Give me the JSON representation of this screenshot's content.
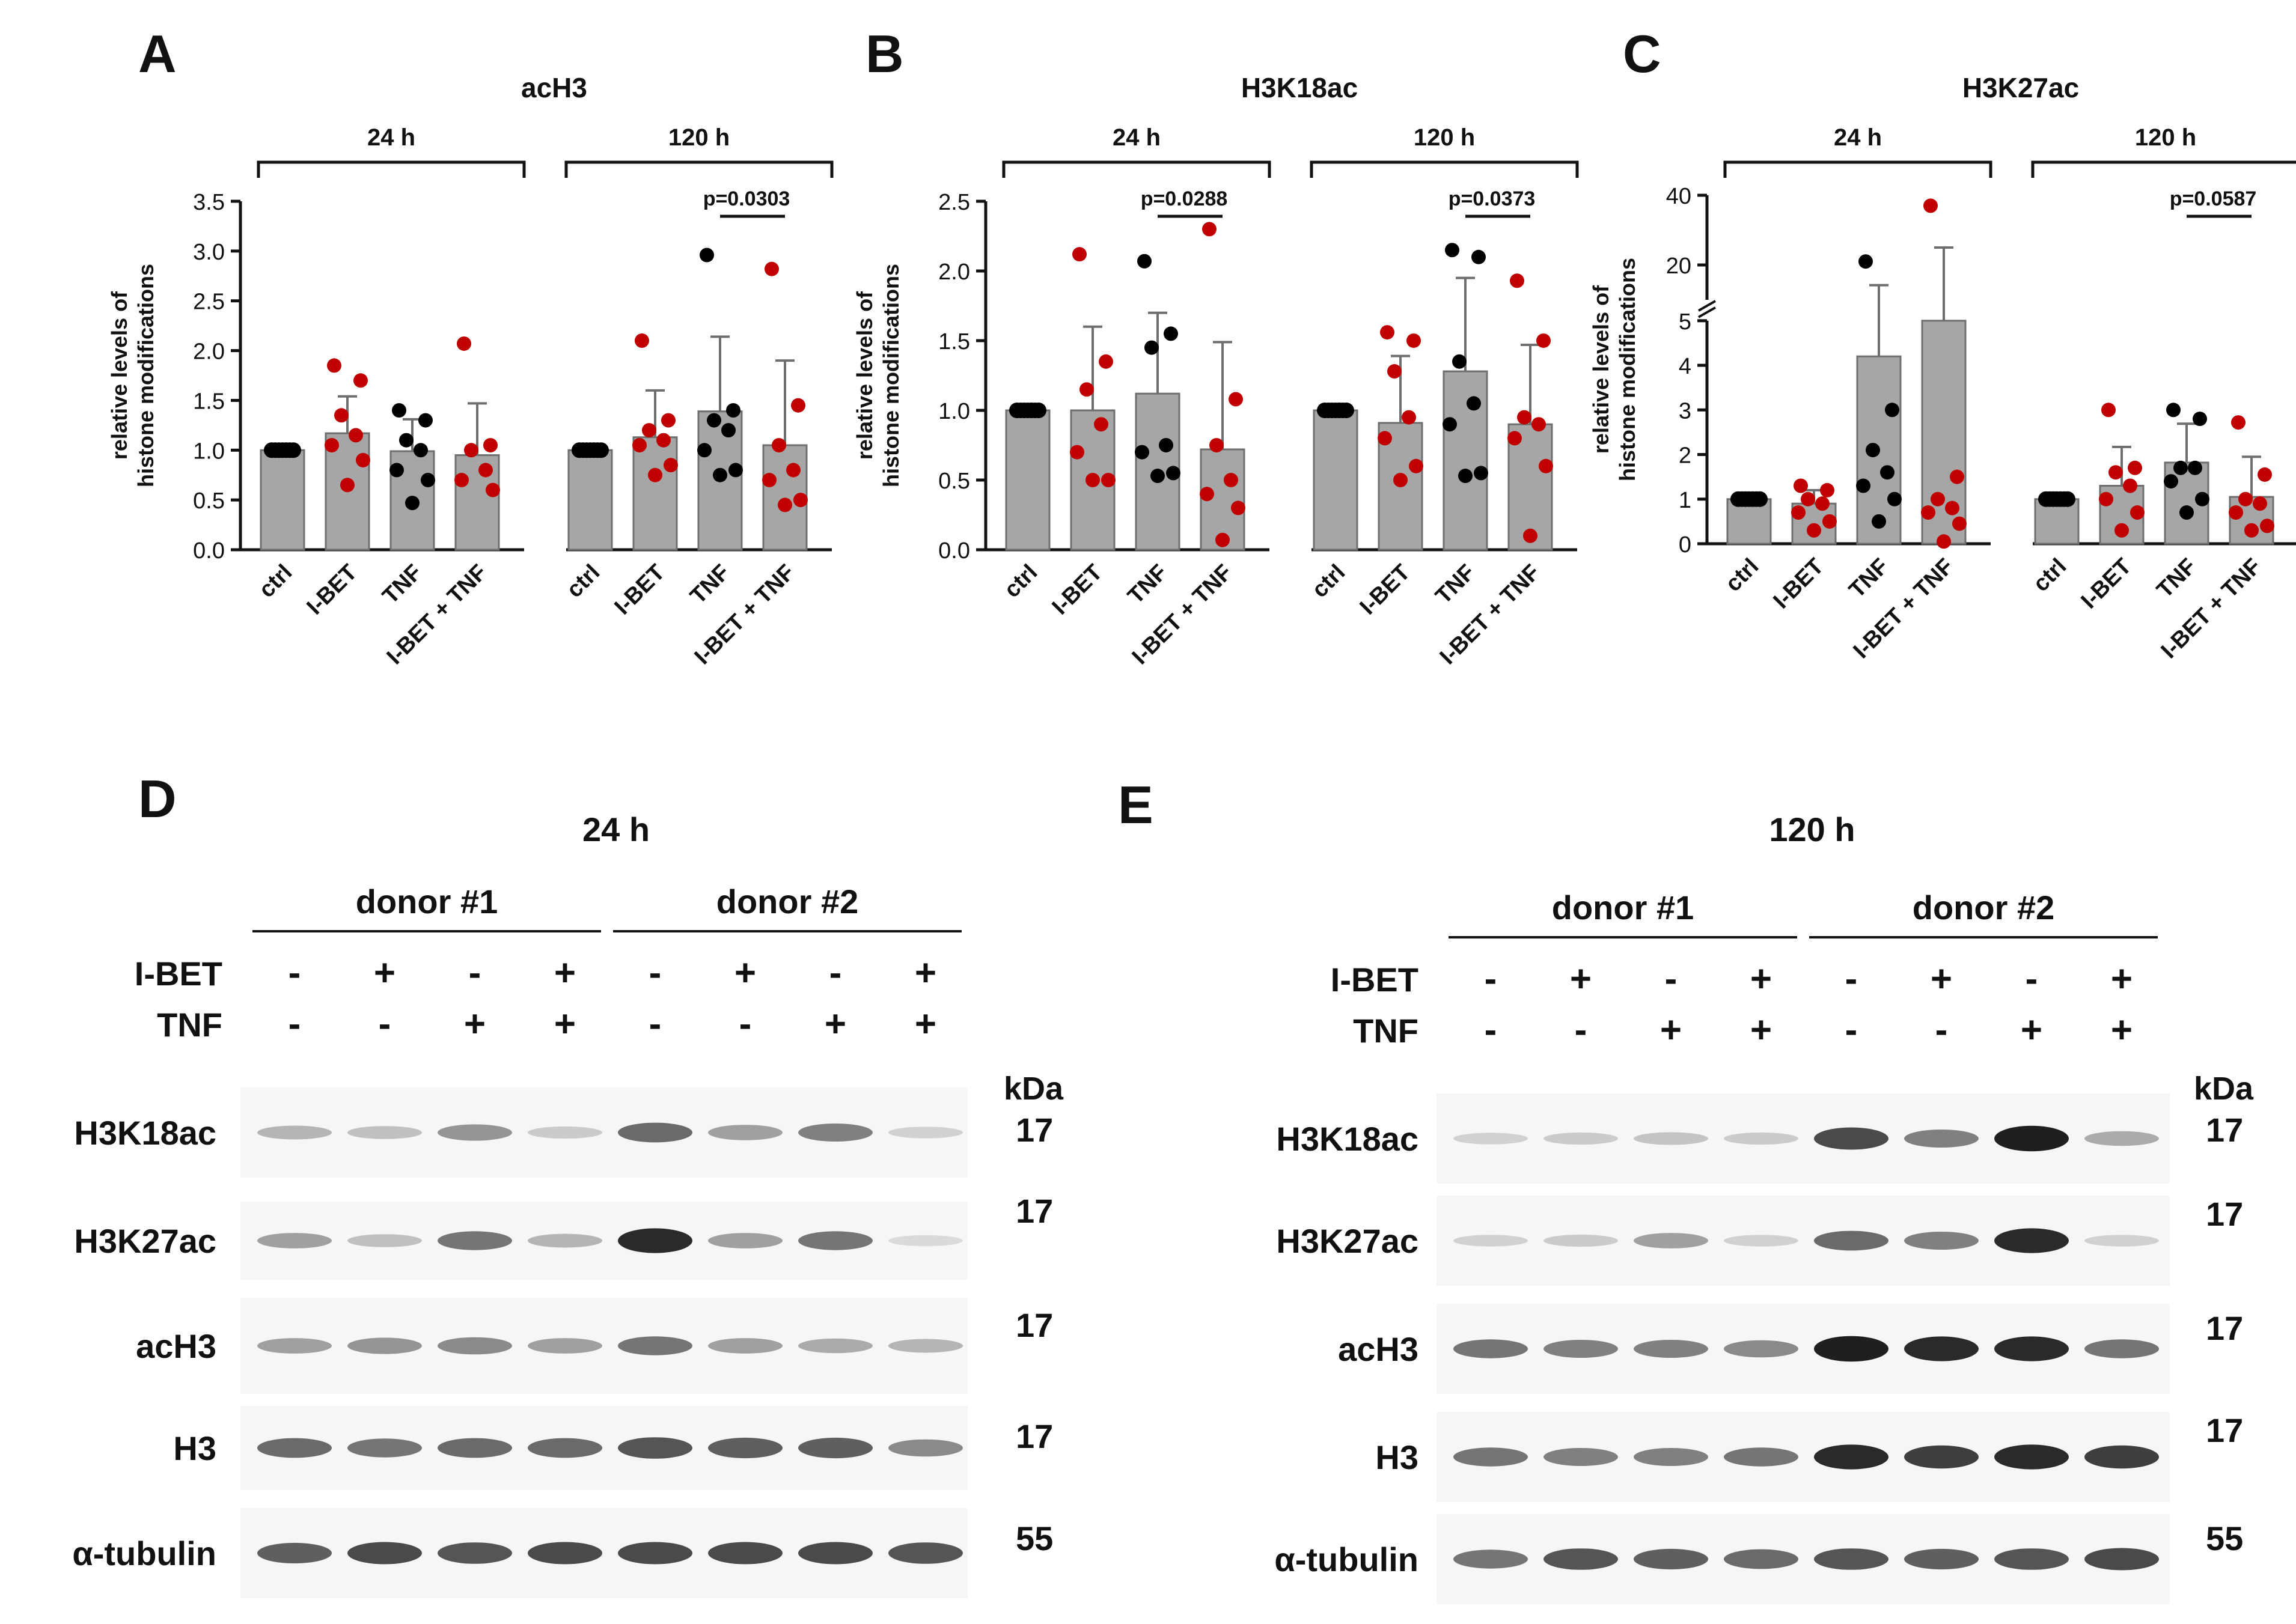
{
  "panel_letters": {
    "A": "A",
    "B": "B",
    "C": "C",
    "D": "D",
    "E": "E"
  },
  "colors": {
    "bar": "#a6a6a6",
    "bar_edge": "#6e6e6e",
    "red": "#c00000",
    "black": "#000000",
    "axis": "#111111"
  },
  "chart_data": [
    {
      "panel": "A",
      "type": "bar",
      "title": "acH3",
      "ylabel": [
        "relative levels of",
        "histone modifications"
      ],
      "ylim": [
        0,
        3.5
      ],
      "yticks": [
        "0.0",
        "0.5",
        "1.0",
        "1.5",
        "2.0",
        "2.5",
        "3.0",
        "3.5"
      ],
      "categories": [
        "ctrl",
        "I-BET",
        "TNF",
        "I-BET + TNF"
      ],
      "groups": [
        {
          "label": "24 h",
          "means": [
            1.0,
            1.17,
            0.99,
            0.95
          ],
          "sd": [
            0,
            0.37,
            0.32,
            0.52
          ],
          "points": [
            [
              1,
              1,
              1,
              1,
              1,
              1,
              1
            ],
            [
              1.85,
              1.7,
              1.35,
              1.15,
              1.05,
              0.9,
              0.65
            ],
            [
              1.4,
              1.3,
              1.1,
              1.0,
              0.8,
              0.7,
              0.47
            ],
            [
              2.07,
              1.05,
              1.0,
              0.8,
              0.7,
              0.6
            ]
          ]
        },
        {
          "label": "120 h",
          "means": [
            1.0,
            1.13,
            1.39,
            1.05
          ],
          "sd": [
            0,
            0.47,
            0.75,
            0.85
          ],
          "points": [
            [
              1,
              1,
              1,
              1,
              1,
              1,
              1
            ],
            [
              2.1,
              1.3,
              1.2,
              1.1,
              1.05,
              0.85,
              0.75
            ],
            [
              2.96,
              1.4,
              1.3,
              1.2,
              1.0,
              0.8,
              0.75
            ],
            [
              2.82,
              1.45,
              1.05,
              0.8,
              0.7,
              0.5,
              0.45
            ]
          ]
        }
      ],
      "significance": [
        {
          "group": 1,
          "from": 2,
          "to": 3,
          "label": "p=0.0303"
        }
      ],
      "ylabel_visible": true
    },
    {
      "panel": "B",
      "type": "bar",
      "title": "H3K18ac",
      "ylabel": [
        "relative levels of",
        "histone modifications"
      ],
      "ylim": [
        0,
        2.5
      ],
      "yticks": [
        "0.0",
        "0.5",
        "1.0",
        "1.5",
        "2.0",
        "2.5"
      ],
      "categories": [
        "ctrl",
        "I-BET",
        "TNF",
        "I-BET + TNF"
      ],
      "groups": [
        {
          "label": "24 h",
          "means": [
            1.0,
            1.0,
            1.12,
            0.72
          ],
          "sd": [
            0,
            0.6,
            0.58,
            0.77
          ],
          "points": [
            [
              1,
              1,
              1,
              1,
              1,
              1,
              1
            ],
            [
              2.12,
              1.35,
              1.15,
              0.9,
              0.7,
              0.5,
              0.5
            ],
            [
              2.07,
              1.55,
              1.45,
              0.75,
              0.7,
              0.55,
              0.53
            ],
            [
              2.3,
              1.08,
              0.75,
              0.5,
              0.4,
              0.3,
              0.07
            ]
          ]
        },
        {
          "label": "120 h",
          "means": [
            1.0,
            0.91,
            1.28,
            0.9
          ],
          "sd": [
            0,
            0.48,
            0.67,
            0.57
          ],
          "points": [
            [
              1,
              1,
              1,
              1,
              1,
              1,
              1
            ],
            [
              1.56,
              1.5,
              1.28,
              0.95,
              0.8,
              0.6,
              0.5
            ],
            [
              2.15,
              2.1,
              1.35,
              1.05,
              0.9,
              0.55,
              0.53
            ],
            [
              1.93,
              1.5,
              0.95,
              0.9,
              0.8,
              0.6,
              0.1
            ]
          ]
        }
      ],
      "significance": [
        {
          "group": 0,
          "from": 2,
          "to": 3,
          "label": "p=0.0288"
        },
        {
          "group": 1,
          "from": 2,
          "to": 3,
          "label": "p=0.0373"
        }
      ],
      "ylabel_visible": true
    },
    {
      "panel": "C",
      "type": "bar",
      "title": "H3K27ac",
      "ylabel": [
        "relative levels of",
        "histone modifications"
      ],
      "ylim": [
        0,
        40
      ],
      "axis_break": {
        "lower": [
          0,
          5
        ],
        "upper": [
          10,
          40
        ]
      },
      "yticks": [
        "0",
        "1",
        "2",
        "3",
        "4",
        "5",
        "20",
        "40"
      ],
      "categories": [
        "ctrl",
        "I-BET",
        "TNF",
        "I-BET + TNF"
      ],
      "groups": [
        {
          "label": "24 h",
          "means": [
            1.0,
            0.9,
            4.2,
            5.0
          ],
          "sd": [
            0,
            0.3,
            10,
            20
          ],
          "points": [
            [
              1,
              1,
              1,
              1,
              1,
              1,
              1
            ],
            [
              1.3,
              1.2,
              1.0,
              0.9,
              0.7,
              0.5,
              0.3
            ],
            [
              21,
              3.0,
              2.1,
              1.6,
              1.3,
              1.0,
              0.5
            ],
            [
              37,
              1.5,
              1.0,
              0.8,
              0.7,
              0.45,
              0.05
            ]
          ]
        },
        {
          "label": "120 h",
          "means": [
            1.0,
            1.3,
            1.82,
            1.05
          ],
          "sd": [
            0,
            0.87,
            0.87,
            0.9
          ],
          "points": [
            [
              1,
              1,
              1,
              1,
              1,
              1,
              1
            ],
            [
              3.0,
              1.7,
              1.6,
              1.3,
              1.0,
              0.7,
              0.3
            ],
            [
              3.0,
              2.8,
              1.7,
              1.7,
              1.4,
              1.0,
              0.7
            ],
            [
              2.72,
              1.55,
              1.0,
              0.9,
              0.7,
              0.4,
              0.3
            ]
          ]
        }
      ],
      "significance": [
        {
          "group": 1,
          "from": 2,
          "to": 3,
          "label": "p=0.0587"
        }
      ],
      "ylabel_visible": true
    }
  ],
  "blots": [
    {
      "panel": "D",
      "time": "24 h",
      "donors": [
        "donor #1",
        "donor #2"
      ],
      "ibet_label": "I-BET",
      "tnf_label": "TNF",
      "ibet": [
        "-",
        "+",
        "-",
        "+",
        "-",
        "+",
        "-",
        "+"
      ],
      "tnf": [
        "-",
        "-",
        "+",
        "+",
        "-",
        "-",
        "+",
        "+"
      ],
      "kda_label": "kDa",
      "rows": [
        {
          "label": "H3K18ac",
          "kda": "17",
          "intensity": [
            0.25,
            0.2,
            0.4,
            0.15,
            0.6,
            0.35,
            0.5,
            0.12
          ]
        },
        {
          "label": "H3K27ac",
          "kda": "17",
          "intensity": [
            0.35,
            0.2,
            0.55,
            0.25,
            0.9,
            0.35,
            0.55,
            0.08
          ]
        },
        {
          "label": "acH3",
          "kda": "17",
          "intensity": [
            0.35,
            0.4,
            0.45,
            0.35,
            0.55,
            0.35,
            0.3,
            0.25
          ]
        },
        {
          "label": "H3",
          "kda": "17",
          "intensity": [
            0.6,
            0.55,
            0.6,
            0.6,
            0.7,
            0.65,
            0.65,
            0.45
          ]
        },
        {
          "label": "α-tubulin",
          "kda": "55",
          "intensity": [
            0.65,
            0.75,
            0.7,
            0.75,
            0.75,
            0.75,
            0.75,
            0.7
          ]
        }
      ]
    },
    {
      "panel": "E",
      "time": "120 h",
      "donors": [
        "donor #1",
        "donor #2"
      ],
      "ibet_label": "I-BET",
      "tnf_label": "TNF",
      "ibet": [
        "-",
        "+",
        "-",
        "+",
        "-",
        "+",
        "-",
        "+"
      ],
      "tnf": [
        "-",
        "-",
        "+",
        "+",
        "-",
        "-",
        "+",
        "+"
      ],
      "kda_label": "kDa",
      "rows": [
        {
          "label": "H3K18ac",
          "kda": "17",
          "intensity": [
            0.12,
            0.15,
            0.18,
            0.15,
            0.75,
            0.5,
            0.95,
            0.3
          ]
        },
        {
          "label": "H3K27ac",
          "kda": "17",
          "intensity": [
            0.12,
            0.15,
            0.35,
            0.12,
            0.6,
            0.5,
            0.9,
            0.12
          ]
        },
        {
          "label": "acH3",
          "kda": "17",
          "intensity": [
            0.55,
            0.5,
            0.5,
            0.45,
            0.95,
            0.9,
            0.9,
            0.55
          ]
        },
        {
          "label": "H3",
          "kda": "17",
          "intensity": [
            0.55,
            0.5,
            0.5,
            0.55,
            0.9,
            0.8,
            0.9,
            0.8
          ]
        },
        {
          "label": "α-tubulin",
          "kda": "55",
          "intensity": [
            0.55,
            0.7,
            0.65,
            0.6,
            0.7,
            0.65,
            0.7,
            0.75
          ]
        }
      ]
    }
  ]
}
